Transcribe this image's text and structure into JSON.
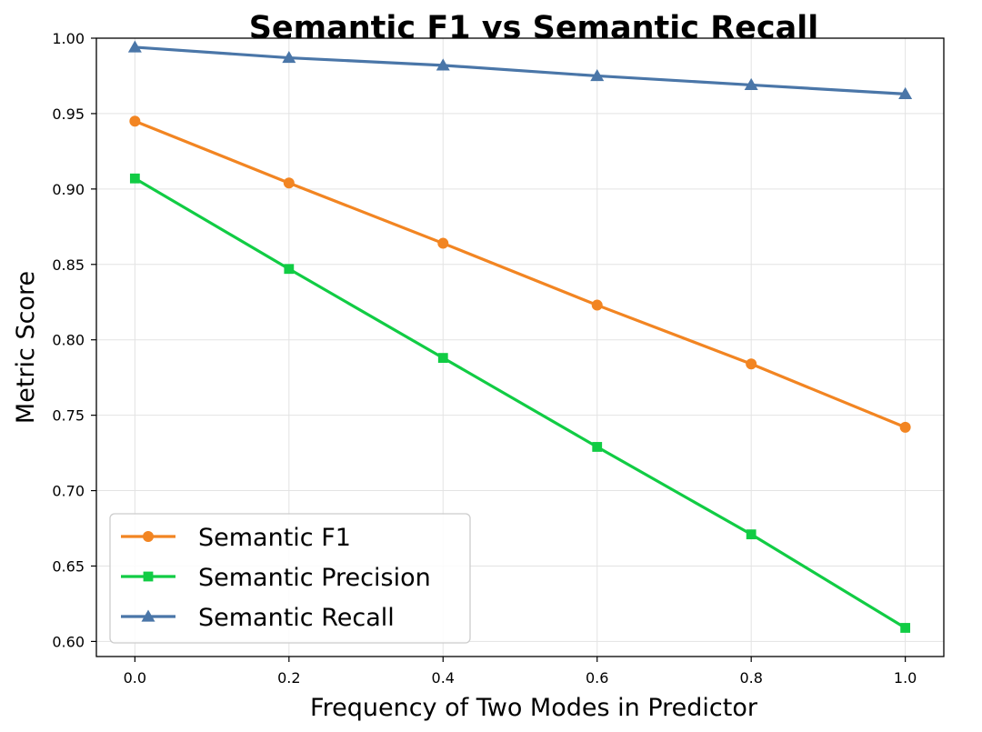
{
  "chart_data": {
    "type": "line",
    "title": "Semantic F1 vs Semantic Recall",
    "xlabel": "Frequency of Two Modes in Predictor",
    "ylabel": "Metric Score",
    "x": [
      0.0,
      0.2,
      0.4,
      0.6,
      0.8,
      1.0
    ],
    "xlim": [
      -0.05,
      1.05
    ],
    "ylim": [
      0.59,
      1.0
    ],
    "x_ticks": [
      "0.0",
      "0.2",
      "0.4",
      "0.6",
      "0.8",
      "1.0"
    ],
    "y_ticks": [
      "0.60",
      "0.65",
      "0.70",
      "0.75",
      "0.80",
      "0.85",
      "0.90",
      "0.95",
      "1.00"
    ],
    "grid": true,
    "legend_position": "lower-left",
    "series": [
      {
        "name": "Semantic F1",
        "marker": "circle",
        "color": "#f28522",
        "values": [
          0.945,
          0.904,
          0.864,
          0.823,
          0.784,
          0.742
        ]
      },
      {
        "name": "Semantic Precision",
        "marker": "square",
        "color": "#11cc44",
        "values": [
          0.907,
          0.847,
          0.788,
          0.729,
          0.671,
          0.609
        ]
      },
      {
        "name": "Semantic Recall",
        "marker": "triangle",
        "color": "#4a76a8",
        "values": [
          0.994,
          0.987,
          0.982,
          0.975,
          0.969,
          0.963
        ]
      }
    ]
  }
}
